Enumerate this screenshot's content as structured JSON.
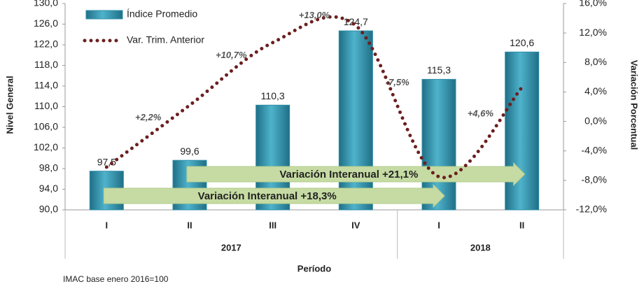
{
  "chart_data": {
    "type": "bar_line",
    "groups": [
      {
        "label": "2017",
        "categories": [
          "I",
          "II",
          "III",
          "IV"
        ]
      },
      {
        "label": "2018",
        "categories": [
          "I",
          "II"
        ]
      }
    ],
    "series": [
      {
        "name": "Índice Promedio",
        "type": "bar",
        "color": "#2e8ea8",
        "values": [
          97.5,
          99.6,
          110.3,
          124.7,
          115.3,
          120.6
        ],
        "value_labels": [
          "97,5",
          "99,6",
          "110,3",
          "124,7",
          "115,3",
          "120,6"
        ]
      },
      {
        "name": "Var. Trim. Anterior",
        "type": "line",
        "axis": "y2",
        "color": "#6b1f1f",
        "values": [
          -6.2,
          2.2,
          10.7,
          13.0,
          -7.5,
          4.6
        ],
        "value_labels": [
          null,
          "+2,2%",
          "+10,7%",
          "+13,0%",
          "-7,5%",
          "+4,6%"
        ]
      }
    ],
    "ylim": [
      90,
      130
    ],
    "yticks": [
      {
        "value": 90,
        "label": "90,0"
      },
      {
        "value": 94,
        "label": "94,0"
      },
      {
        "value": 98,
        "label": "98,0"
      },
      {
        "value": 102,
        "label": "102,0"
      },
      {
        "value": 106,
        "label": "106,0"
      },
      {
        "value": 110,
        "label": "110,0"
      },
      {
        "value": 114,
        "label": "114,0"
      },
      {
        "value": 118,
        "label": "118,0"
      },
      {
        "value": 122,
        "label": "122,0"
      },
      {
        "value": 126,
        "label": "126,0"
      },
      {
        "value": 130,
        "label": "130,0"
      }
    ],
    "y2lim": [
      -12,
      16
    ],
    "y2ticks": [
      {
        "value": -12,
        "label": "-12,0%"
      },
      {
        "value": -8,
        "label": "-8,0%"
      },
      {
        "value": -4,
        "label": "-4,0%"
      },
      {
        "value": 0,
        "label": "0,0%"
      },
      {
        "value": 4,
        "label": "4,0%"
      },
      {
        "value": 8,
        "label": "8,0%"
      },
      {
        "value": 12,
        "label": "12,0%"
      },
      {
        "value": 16,
        "label": "16,0%"
      }
    ],
    "ylabel": "Nivel General",
    "y2label": "Variación Porcentual",
    "xlabel": "Período",
    "annotations": [
      {
        "text": "Variación Interanual +18,3%"
      },
      {
        "text": "Variación Interanual +21,1%"
      }
    ],
    "footnote": "IMAC base enero 2016=100",
    "legend": "top-left"
  }
}
